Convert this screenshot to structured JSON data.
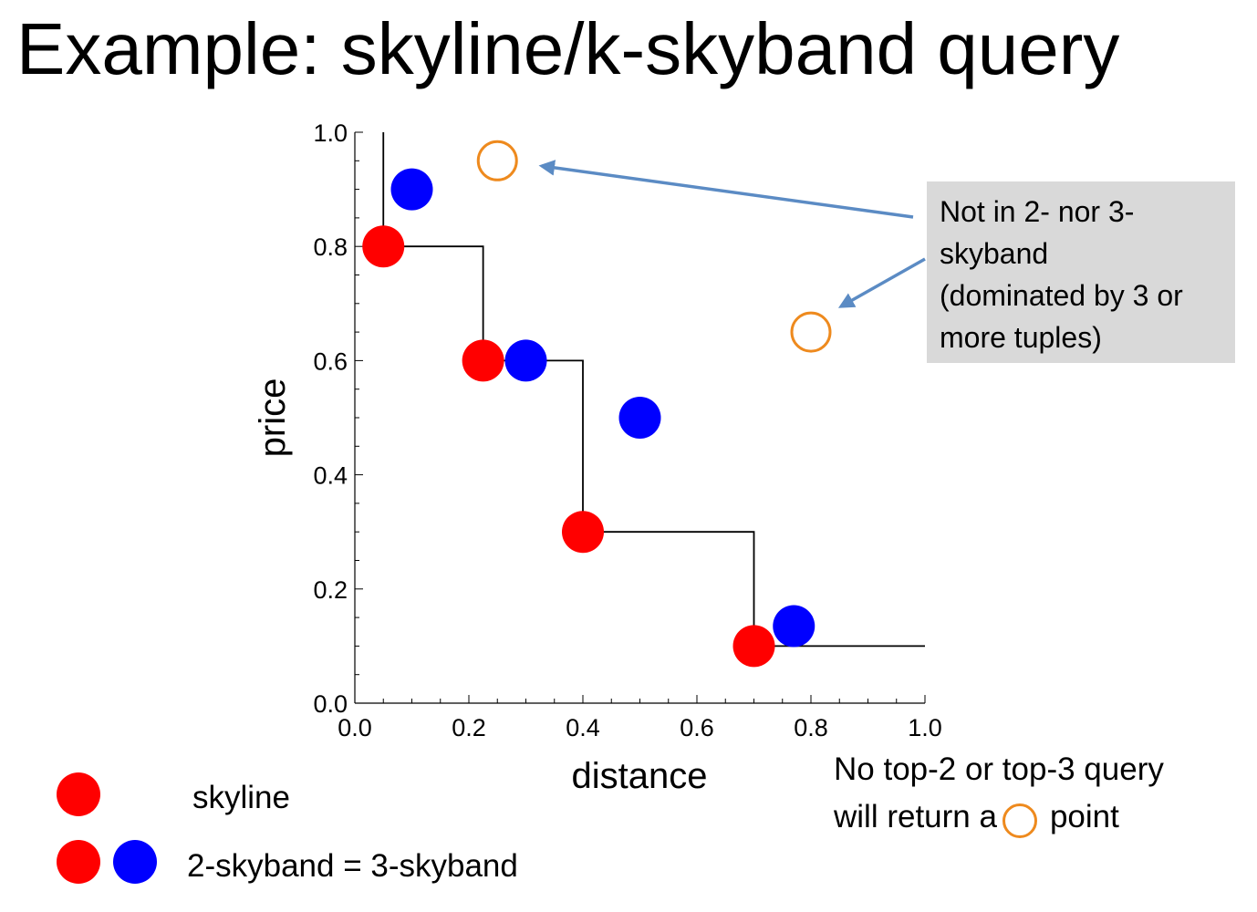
{
  "title": "Example: skyline/k-skyband query",
  "chart_data": {
    "type": "scatter",
    "xlabel": "distance",
    "ylabel": "price",
    "xlim": [
      0,
      1
    ],
    "ylim": [
      0,
      1
    ],
    "xticks": [
      "0.0",
      "0.2",
      "0.4",
      "0.6",
      "0.8",
      "1.0"
    ],
    "yticks": [
      "0.0",
      "0.2",
      "0.4",
      "0.6",
      "0.8",
      "1.0"
    ],
    "grid": false,
    "series": [
      {
        "color": "#ff0000",
        "marker": "filled-circle",
        "points": [
          [
            0.05,
            0.8
          ],
          [
            0.225,
            0.6
          ],
          [
            0.4,
            0.3
          ],
          [
            0.7,
            0.1
          ]
        ]
      },
      {
        "color": "#0000ff",
        "marker": "filled-circle",
        "points": [
          [
            0.1,
            0.9
          ],
          [
            0.3,
            0.6
          ],
          [
            0.5,
            0.5
          ],
          [
            0.77,
            0.135
          ]
        ]
      },
      {
        "color": "#ee8a1e",
        "marker": "hollow-circle",
        "points": [
          [
            0.25,
            0.95
          ],
          [
            0.8,
            0.65
          ]
        ]
      }
    ],
    "skyline_step": [
      [
        0.05,
        1.0
      ],
      [
        0.05,
        0.8
      ],
      [
        0.225,
        0.8
      ],
      [
        0.225,
        0.6
      ],
      [
        0.4,
        0.6
      ],
      [
        0.4,
        0.3
      ],
      [
        0.7,
        0.3
      ],
      [
        0.7,
        0.1
      ],
      [
        1.0,
        0.1
      ]
    ]
  },
  "callout": {
    "text": [
      "Not in 2- nor 3-",
      "skyband",
      "(dominated by 3 or",
      "more tuples)"
    ],
    "arrow_color": "#5b8bc4"
  },
  "note": {
    "line1": "No top-2 or top-3 query",
    "line2_before": "will return a",
    "line2_after": "point"
  },
  "legend": {
    "skyline_label": "skyline",
    "skyband_label": "2-skyband = 3-skyband"
  }
}
